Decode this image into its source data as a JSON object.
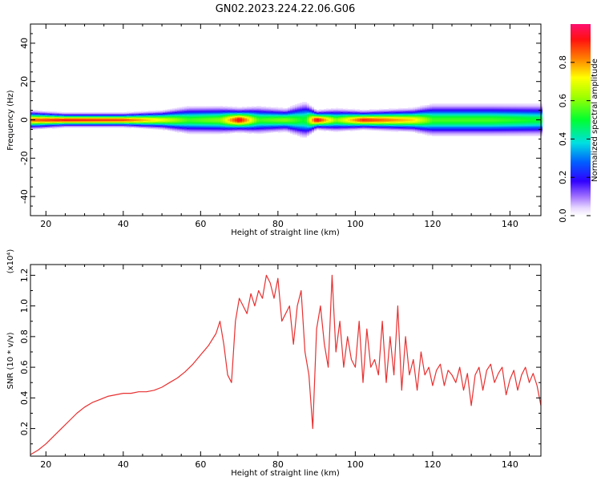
{
  "title": "GN02.2023.224.22.06.G06",
  "chart_data": [
    {
      "type": "heatmap",
      "name": "spectrogram",
      "xlabel": "Height of straight line (km)",
      "ylabel": "Frequency (Hz)",
      "xlim": [
        16,
        148
      ],
      "ylim": [
        -50,
        50
      ],
      "xticks": [
        20,
        40,
        60,
        80,
        100,
        120,
        140
      ],
      "yticks": [
        -40,
        -20,
        0,
        20,
        40
      ],
      "colorbar": {
        "label": "Normalized spectral amplitude",
        "range": [
          0,
          1
        ],
        "ticks": [
          "0.0",
          "0.2",
          "0.4",
          "0.6",
          "0.8"
        ]
      },
      "band_center_hz": 0,
      "band_profile": [
        {
          "x": 16,
          "peak": 0.85,
          "width": 4
        },
        {
          "x": 25,
          "peak": 0.92,
          "width": 3
        },
        {
          "x": 40,
          "peak": 0.88,
          "width": 3
        },
        {
          "x": 50,
          "peak": 0.7,
          "width": 4
        },
        {
          "x": 57,
          "peak": 0.55,
          "width": 6
        },
        {
          "x": 65,
          "peak": 0.6,
          "width": 6
        },
        {
          "x": 70,
          "peak": 0.95,
          "width": 5
        },
        {
          "x": 75,
          "peak": 0.55,
          "width": 6
        },
        {
          "x": 82,
          "peak": 0.6,
          "width": 5
        },
        {
          "x": 87,
          "peak": 0.5,
          "width": 8
        },
        {
          "x": 90,
          "peak": 0.95,
          "width": 4
        },
        {
          "x": 95,
          "peak": 0.6,
          "width": 5
        },
        {
          "x": 102,
          "peak": 0.9,
          "width": 4
        },
        {
          "x": 115,
          "peak": 0.75,
          "width": 5
        },
        {
          "x": 120,
          "peak": 0.55,
          "width": 7
        },
        {
          "x": 135,
          "peak": 0.55,
          "width": 7
        },
        {
          "x": 148,
          "peak": 0.5,
          "width": 7
        }
      ]
    },
    {
      "type": "line",
      "name": "snr",
      "xlabel": "Height of straight line (km)",
      "ylabel": "SNR (10 * v/v)",
      "yscale_note": "(x10⁴)",
      "xlim": [
        16,
        148
      ],
      "ylim": [
        0.02,
        1.27
      ],
      "xticks": [
        20,
        40,
        60,
        80,
        100,
        120,
        140
      ],
      "yticks": [
        "0.2",
        "0.4",
        "0.6",
        "0.8",
        "1.0",
        "1.2"
      ],
      "series": [
        {
          "color": "#e83030",
          "x": [
            16,
            18,
            20,
            22,
            24,
            26,
            28,
            30,
            32,
            34,
            36,
            38,
            40,
            42,
            44,
            46,
            48,
            50,
            52,
            54,
            56,
            58,
            60,
            62,
            64,
            65,
            66,
            67,
            68,
            69,
            70,
            71,
            72,
            73,
            74,
            75,
            76,
            77,
            78,
            79,
            80,
            81,
            82,
            83,
            84,
            85,
            86,
            87,
            88,
            89,
            90,
            91,
            92,
            93,
            94,
            95,
            96,
            97,
            98,
            99,
            100,
            101,
            102,
            103,
            104,
            105,
            106,
            107,
            108,
            109,
            110,
            111,
            112,
            113,
            114,
            115,
            116,
            117,
            118,
            119,
            120,
            121,
            122,
            123,
            124,
            125,
            126,
            127,
            128,
            129,
            130,
            131,
            132,
            133,
            134,
            135,
            136,
            137,
            138,
            139,
            140,
            141,
            142,
            143,
            144,
            145,
            146,
            147,
            148
          ],
          "y": [
            0.03,
            0.06,
            0.1,
            0.15,
            0.2,
            0.25,
            0.3,
            0.34,
            0.37,
            0.39,
            0.41,
            0.42,
            0.43,
            0.43,
            0.44,
            0.44,
            0.45,
            0.47,
            0.5,
            0.53,
            0.57,
            0.62,
            0.68,
            0.74,
            0.82,
            0.9,
            0.75,
            0.55,
            0.5,
            0.9,
            1.05,
            1.0,
            0.95,
            1.08,
            1.0,
            1.1,
            1.05,
            1.2,
            1.15,
            1.05,
            1.18,
            0.9,
            0.95,
            1.0,
            0.75,
            1.0,
            1.1,
            0.7,
            0.55,
            0.2,
            0.85,
            1.0,
            0.75,
            0.6,
            1.2,
            0.7,
            0.9,
            0.6,
            0.8,
            0.65,
            0.6,
            0.9,
            0.5,
            0.85,
            0.6,
            0.65,
            0.55,
            0.9,
            0.5,
            0.8,
            0.55,
            1.0,
            0.45,
            0.8,
            0.55,
            0.65,
            0.45,
            0.7,
            0.55,
            0.6,
            0.48,
            0.58,
            0.62,
            0.48,
            0.58,
            0.55,
            0.5,
            0.6,
            0.45,
            0.56,
            0.35,
            0.55,
            0.6,
            0.45,
            0.58,
            0.62,
            0.5,
            0.56,
            0.6,
            0.42,
            0.52,
            0.58,
            0.45,
            0.55,
            0.6,
            0.5,
            0.56,
            0.48,
            0.35
          ]
        }
      ]
    }
  ]
}
